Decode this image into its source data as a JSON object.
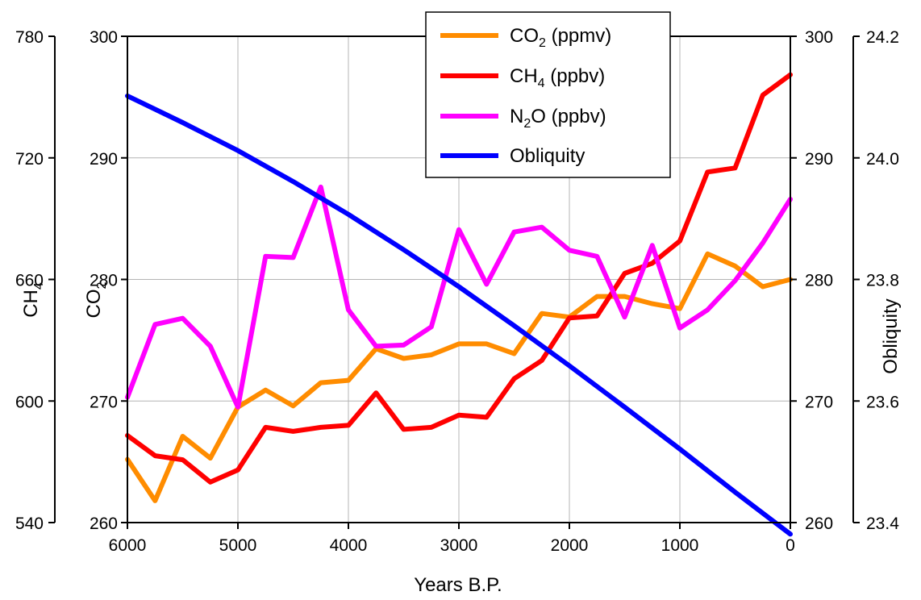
{
  "chart_data": {
    "type": "line",
    "xlabel": "Years B.P.",
    "xlim": [
      6000,
      0
    ],
    "x_ticks": [
      6000,
      5000,
      4000,
      3000,
      2000,
      1000,
      0
    ],
    "axes": {
      "ch4": {
        "title": "CH",
        "sub": "4",
        "lim": [
          540,
          780
        ],
        "ticks": [
          540,
          600,
          660,
          720,
          780
        ]
      },
      "co2_left": {
        "title": "CO",
        "sub": "2",
        "lim": [
          260,
          300
        ],
        "ticks": [
          260,
          270,
          280,
          290,
          300
        ]
      },
      "co2_right": {
        "lim": [
          260,
          300
        ],
        "ticks": [
          260,
          270,
          280,
          290,
          300
        ]
      },
      "obliquity": {
        "title": "Obliquity",
        "lim": [
          23.4,
          24.2
        ],
        "ticks": [
          "23.4",
          "23.6",
          "23.8",
          "24.0",
          "24.2"
        ]
      }
    },
    "grid": true,
    "legend_position": "top-center",
    "series": [
      {
        "name": "CO",
        "name_sub": "2",
        "name_suffix": " (ppmv)",
        "color": "#ff8c00",
        "axis": "co2_left",
        "x": [
          6000,
          5750,
          5500,
          5250,
          5000,
          4750,
          4500,
          4250,
          4000,
          3750,
          3500,
          3250,
          3000,
          2750,
          2500,
          2250,
          2000,
          1750,
          1500,
          1250,
          1000,
          750,
          500,
          250,
          0
        ],
        "y": [
          265.2,
          261.8,
          267.1,
          265.3,
          269.5,
          270.9,
          269.6,
          271.5,
          271.7,
          274.3,
          273.5,
          273.8,
          274.7,
          274.7,
          273.9,
          277.2,
          276.9,
          278.6,
          278.6,
          278.0,
          277.6,
          282.1,
          281.1,
          279.4,
          280.0
        ]
      },
      {
        "name": "CH",
        "name_sub": "4",
        "name_suffix": " (ppbv)",
        "color": "#ff0000",
        "axis": "ch4",
        "x": [
          6000,
          5750,
          5500,
          5250,
          5000,
          4750,
          4500,
          4250,
          4000,
          3750,
          3500,
          3250,
          3000,
          2750,
          2500,
          2250,
          2000,
          1750,
          1500,
          1250,
          1000,
          750,
          500,
          250,
          0
        ],
        "y": [
          583,
          573,
          571,
          560,
          566,
          587,
          585,
          587,
          588,
          604,
          586,
          587,
          593,
          592,
          611,
          620,
          641,
          642,
          663,
          668,
          679,
          713,
          715,
          751,
          761
        ]
      },
      {
        "name": "N",
        "name_sub": "2",
        "name_suffix": "O (ppbv)",
        "color": "#ff00ff",
        "axis": "co2_left",
        "x": [
          6000,
          5750,
          5500,
          5250,
          5000,
          4750,
          4500,
          4250,
          4000,
          3750,
          3500,
          3250,
          3000,
          2750,
          2500,
          2250,
          2000,
          1750,
          1500,
          1250,
          1000,
          750,
          500,
          250,
          0
        ],
        "y": [
          270.3,
          276.3,
          276.8,
          274.5,
          269.5,
          281.9,
          281.8,
          287.6,
          277.5,
          274.5,
          274.6,
          276.1,
          284.1,
          279.6,
          283.9,
          284.3,
          282.4,
          281.9,
          276.9,
          282.8,
          276.0,
          277.5,
          279.9,
          283.0,
          286.6
        ]
      },
      {
        "name": "Obliquity",
        "name_sub": "",
        "name_suffix": "",
        "color": "#0000ff",
        "axis": "obliquity",
        "x": [
          6000,
          5500,
          5000,
          4500,
          4000,
          3500,
          3000,
          2500,
          2000,
          1500,
          1000,
          500,
          0
        ],
        "y": [
          24.102,
          24.058,
          24.012,
          23.961,
          23.907,
          23.849,
          23.788,
          23.724,
          23.658,
          23.59,
          23.521,
          23.45,
          23.381
        ]
      }
    ]
  }
}
